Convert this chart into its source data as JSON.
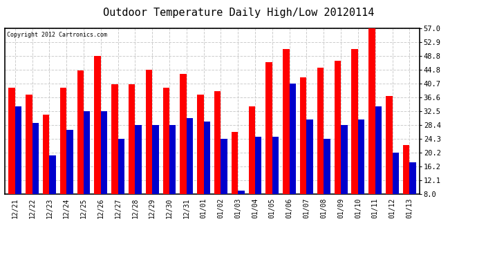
{
  "title": "Outdoor Temperature Daily High/Low 20120114",
  "copyright": "Copyright 2012 Cartronics.com",
  "categories": [
    "12/21",
    "12/22",
    "12/23",
    "12/24",
    "12/25",
    "12/26",
    "12/27",
    "12/28",
    "12/29",
    "12/30",
    "12/31",
    "01/01",
    "01/02",
    "01/03",
    "01/04",
    "01/05",
    "01/06",
    "01/07",
    "01/08",
    "01/09",
    "01/10",
    "01/11",
    "01/12",
    "01/13"
  ],
  "highs": [
    39.5,
    37.5,
    31.5,
    39.5,
    44.5,
    48.8,
    40.5,
    40.5,
    44.8,
    39.5,
    43.5,
    37.5,
    38.5,
    26.5,
    34.0,
    47.0,
    51.0,
    42.5,
    45.5,
    47.5,
    51.0,
    57.0,
    37.0,
    22.5
  ],
  "lows": [
    34.0,
    29.0,
    19.5,
    27.0,
    32.5,
    32.5,
    24.3,
    28.4,
    28.4,
    28.4,
    30.5,
    29.5,
    24.3,
    9.0,
    25.0,
    25.0,
    40.7,
    30.0,
    24.3,
    28.4,
    30.0,
    34.0,
    20.2,
    17.5
  ],
  "high_color": "#ff0000",
  "low_color": "#0000cc",
  "background_color": "#ffffff",
  "grid_color": "#cccccc",
  "yticks": [
    8.0,
    12.1,
    16.2,
    20.2,
    24.3,
    28.4,
    32.5,
    36.6,
    40.7,
    44.8,
    48.8,
    52.9,
    57.0
  ],
  "ymin": 8.0,
  "ymax": 57.0,
  "bar_width": 0.38,
  "title_fontsize": 11,
  "tick_fontsize": 7,
  "ytick_fontsize": 7.5
}
